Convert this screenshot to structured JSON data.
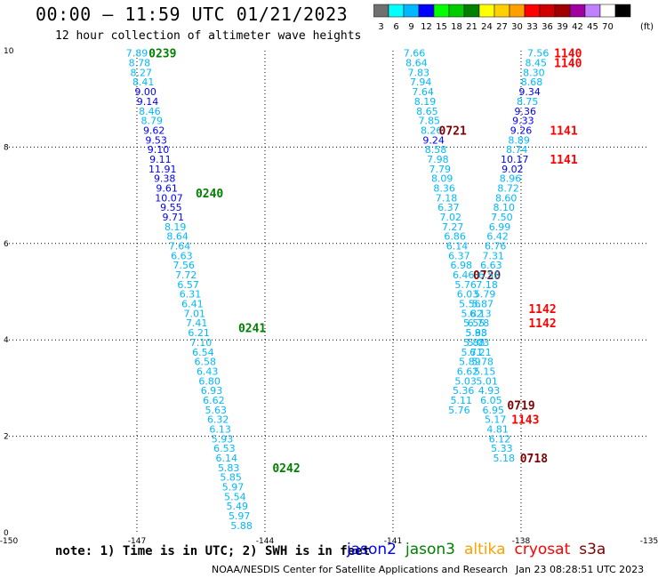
{
  "header": {
    "title": "00:00 – 11:59 UTC 01/21/2023",
    "subtitle": "12 hour collection of altimeter wave heights"
  },
  "legend": {
    "unit": "(ft)",
    "items": [
      {
        "label": "3",
        "color": "#707070"
      },
      {
        "label": "6",
        "color": "#00ffff"
      },
      {
        "label": "9",
        "color": "#00b8ff"
      },
      {
        "label": "12",
        "color": "#0000ff"
      },
      {
        "label": "15",
        "color": "#00ff00"
      },
      {
        "label": "18",
        "color": "#00cc00"
      },
      {
        "label": "21",
        "color": "#008000"
      },
      {
        "label": "24",
        "color": "#ffff00"
      },
      {
        "label": "27",
        "color": "#ffd000"
      },
      {
        "label": "30",
        "color": "#ffa000"
      },
      {
        "label": "33",
        "color": "#ff0000"
      },
      {
        "label": "36",
        "color": "#d00000"
      },
      {
        "label": "39",
        "color": "#a00000"
      },
      {
        "label": "42",
        "color": "#a000a0"
      },
      {
        "label": "45",
        "color": "#c080ff"
      },
      {
        "label": "70",
        "color": "#ffffff"
      },
      {
        "label": "",
        "color": "#000000"
      }
    ]
  },
  "footer": {
    "note": "note: 1) Time is in UTC; 2) SWH is in feet",
    "credit": "NOAA/NESDIS Center for Satellite Applications and Research",
    "generated": "Jan 23 08:28:51 UTC 2023",
    "missions": [
      {
        "name": "jason2",
        "color": "#0000ff"
      },
      {
        "name": "jason3",
        "color": "#008000"
      },
      {
        "name": "altika",
        "color": "#ffa000"
      },
      {
        "name": "cryosat",
        "color": "#ff0000"
      },
      {
        "name": "s3a",
        "color": "#800000"
      }
    ]
  },
  "chart_data": {
    "type": "scatter",
    "xlim": [
      -150,
      -135
    ],
    "ylim": [
      0,
      10
    ],
    "xticks": [
      -150,
      -147,
      -144,
      -141,
      -138,
      -135
    ],
    "yticks": [
      0,
      2,
      4,
      6,
      8,
      10
    ],
    "grid": true,
    "tracks": [
      {
        "mission": "jason3",
        "points": [
          [
            -147.0,
            9.95,
            "7.89"
          ],
          [
            -146.94,
            9.75,
            "8.78"
          ],
          [
            -146.9,
            9.55,
            "8.27"
          ],
          [
            -146.85,
            9.35,
            "8.41"
          ],
          [
            -146.8,
            9.15,
            "9.00"
          ],
          [
            -146.75,
            8.95,
            "9.14"
          ],
          [
            -146.7,
            8.75,
            "8.46"
          ],
          [
            -146.65,
            8.55,
            "8.79"
          ],
          [
            -146.6,
            8.35,
            "9.62"
          ],
          [
            -146.55,
            8.15,
            "9.53"
          ],
          [
            -146.5,
            7.95,
            "9.10"
          ],
          [
            -146.45,
            7.75,
            "9.11"
          ],
          [
            -146.4,
            7.55,
            "11.91"
          ],
          [
            -146.35,
            7.35,
            "9.38"
          ],
          [
            -146.3,
            7.15,
            "9.61"
          ],
          [
            -146.25,
            6.95,
            "10.07"
          ],
          [
            -146.2,
            6.75,
            "9.55"
          ],
          [
            -146.15,
            6.55,
            "9.71"
          ],
          [
            -146.1,
            6.35,
            "8.19"
          ],
          [
            -146.05,
            6.15,
            "8.64"
          ],
          [
            -146.0,
            5.95,
            "7.64"
          ],
          [
            -145.95,
            5.75,
            "6.63"
          ],
          [
            -145.9,
            5.55,
            "7.56"
          ],
          [
            -145.85,
            5.35,
            "7.72"
          ],
          [
            -145.8,
            5.15,
            "6.57"
          ],
          [
            -145.75,
            4.95,
            "6.31"
          ],
          [
            -145.7,
            4.75,
            "6.41"
          ],
          [
            -145.65,
            4.55,
            "7.01"
          ],
          [
            -145.6,
            4.35,
            "7.41"
          ],
          [
            -145.55,
            4.15,
            "6.21"
          ],
          [
            -145.5,
            3.95,
            "7.10"
          ],
          [
            -145.45,
            3.75,
            "6.54"
          ],
          [
            -145.4,
            3.55,
            "6.58"
          ],
          [
            -145.35,
            3.35,
            "6.43"
          ],
          [
            -145.3,
            3.15,
            "6.80"
          ],
          [
            -145.25,
            2.95,
            "6.93"
          ],
          [
            -145.2,
            2.75,
            "6.62"
          ],
          [
            -145.15,
            2.55,
            "5.63"
          ],
          [
            -145.1,
            2.35,
            "6.32"
          ],
          [
            -145.05,
            2.15,
            "6.13"
          ],
          [
            -145.0,
            1.95,
            "5.93"
          ],
          [
            -144.95,
            1.75,
            "6.53"
          ],
          [
            -144.9,
            1.55,
            "6.14"
          ],
          [
            -144.85,
            1.35,
            "5.83"
          ],
          [
            -144.8,
            1.15,
            "5.85"
          ],
          [
            -144.75,
            0.95,
            "5.97"
          ],
          [
            -144.7,
            0.75,
            "5.54"
          ],
          [
            -144.65,
            0.55,
            "5.49"
          ],
          [
            -144.6,
            0.35,
            "5.97"
          ],
          [
            -144.55,
            0.15,
            "5.88"
          ]
        ],
        "times": [
          {
            "x": -146.4,
            "y": 9.95,
            "label": "0239"
          },
          {
            "x": -145.3,
            "y": 7.05,
            "label": "0240"
          },
          {
            "x": -144.3,
            "y": 4.25,
            "label": "0241"
          },
          {
            "x": -143.5,
            "y": 1.35,
            "label": "0242"
          }
        ]
      },
      {
        "mission": "s3a",
        "points": [
          [
            -140.5,
            9.95,
            "7.66"
          ],
          [
            -140.45,
            9.75,
            "8.64"
          ],
          [
            -140.4,
            9.55,
            "7.83"
          ],
          [
            -140.35,
            9.35,
            "7.94"
          ],
          [
            -140.3,
            9.15,
            "7.64"
          ],
          [
            -140.25,
            8.95,
            "8.19"
          ],
          [
            -140.2,
            8.75,
            "8.65"
          ],
          [
            -140.15,
            8.55,
            "7.85"
          ],
          [
            -140.1,
            8.35,
            "8.26"
          ],
          [
            -140.05,
            8.15,
            "9.24"
          ],
          [
            -140.0,
            7.95,
            "8.58"
          ],
          [
            -139.95,
            7.75,
            "7.98"
          ],
          [
            -139.9,
            7.55,
            "7.79"
          ],
          [
            -139.85,
            7.35,
            "8.09"
          ],
          [
            -139.8,
            7.15,
            "8.36"
          ],
          [
            -139.75,
            6.95,
            "7.18"
          ],
          [
            -139.7,
            6.75,
            "6.37"
          ],
          [
            -139.65,
            6.55,
            "7.02"
          ],
          [
            -139.6,
            6.35,
            "7.27"
          ],
          [
            -139.55,
            6.15,
            "6.86"
          ],
          [
            -139.5,
            5.95,
            "6.14"
          ],
          [
            -139.45,
            5.75,
            "6.37"
          ],
          [
            -139.4,
            5.55,
            "6.98"
          ],
          [
            -139.35,
            5.35,
            "6.46"
          ],
          [
            -139.3,
            5.15,
            "5.76"
          ],
          [
            -139.25,
            4.95,
            "6.03"
          ],
          [
            -139.2,
            4.75,
            "5.56"
          ],
          [
            -139.15,
            4.55,
            "5.82"
          ],
          [
            -139.1,
            4.35,
            "5.55"
          ],
          [
            -139.05,
            4.15,
            "5.93"
          ],
          [
            -139.0,
            3.95,
            "5.03"
          ],
          [
            -138.95,
            3.75,
            "6.21"
          ],
          [
            -138.9,
            3.55,
            "5.78"
          ],
          [
            -138.85,
            3.35,
            "5.15"
          ],
          [
            -138.8,
            3.15,
            "5.01"
          ],
          [
            -138.75,
            2.95,
            "4.93"
          ],
          [
            -138.7,
            2.75,
            "6.05"
          ],
          [
            -138.65,
            2.55,
            "6.95"
          ],
          [
            -138.6,
            2.35,
            "5.17"
          ],
          [
            -138.55,
            2.15,
            "4.81"
          ],
          [
            -138.5,
            1.95,
            "6.12"
          ],
          [
            -138.45,
            1.75,
            "5.33"
          ],
          [
            -138.4,
            1.55,
            "5.18"
          ]
        ],
        "times": [
          {
            "x": -139.6,
            "y": 8.35,
            "label": "0721"
          },
          {
            "x": -138.8,
            "y": 5.35,
            "label": "0720"
          },
          {
            "x": -138.0,
            "y": 2.65,
            "label": "0719"
          },
          {
            "x": -137.7,
            "y": 1.55,
            "label": "0718"
          }
        ]
      },
      {
        "mission": "cryosat",
        "points": [
          [
            -137.6,
            9.95,
            "7.56"
          ],
          [
            -137.65,
            9.75,
            "8.45"
          ],
          [
            -137.7,
            9.55,
            "8.30"
          ],
          [
            -137.75,
            9.35,
            "8.68"
          ],
          [
            -137.8,
            9.15,
            "9.34"
          ],
          [
            -137.85,
            8.95,
            "8.75"
          ],
          [
            -137.9,
            8.75,
            "9.36"
          ],
          [
            -137.95,
            8.55,
            "9.33"
          ],
          [
            -138.0,
            8.35,
            "9.26"
          ],
          [
            -138.05,
            8.15,
            "8.89"
          ],
          [
            -138.1,
            7.95,
            "8.74"
          ],
          [
            -138.15,
            7.75,
            "10.17"
          ],
          [
            -138.2,
            7.55,
            "9.02"
          ],
          [
            -138.25,
            7.35,
            "8.96"
          ],
          [
            -138.3,
            7.15,
            "8.72"
          ],
          [
            -138.35,
            6.95,
            "8.60"
          ],
          [
            -138.4,
            6.75,
            "8.10"
          ],
          [
            -138.45,
            6.55,
            "7.50"
          ],
          [
            -138.5,
            6.35,
            "6.99"
          ],
          [
            -138.55,
            6.15,
            "6.42"
          ],
          [
            -138.6,
            5.95,
            "6.76"
          ],
          [
            -138.65,
            5.75,
            "7.31"
          ],
          [
            -138.7,
            5.55,
            "6.63"
          ],
          [
            -138.75,
            5.35,
            "6.58"
          ],
          [
            -138.8,
            5.15,
            "7.18"
          ],
          [
            -138.85,
            4.95,
            "5.79"
          ],
          [
            -138.9,
            4.75,
            "5.87"
          ],
          [
            -138.95,
            4.55,
            "6.13"
          ],
          [
            -139.0,
            4.35,
            "6.78"
          ],
          [
            -139.05,
            4.15,
            "5.88"
          ],
          [
            -139.1,
            3.95,
            "5.88"
          ],
          [
            -139.15,
            3.75,
            "5.71"
          ],
          [
            -139.2,
            3.55,
            "5.89"
          ],
          [
            -139.25,
            3.35,
            "6.62"
          ],
          [
            -139.3,
            3.15,
            "5.03"
          ],
          [
            -139.35,
            2.95,
            "5.36"
          ],
          [
            -139.4,
            2.75,
            "5.11"
          ],
          [
            -139.45,
            2.55,
            "5.76"
          ]
        ],
        "times": [
          {
            "x": -136.9,
            "y": 9.95,
            "label": "1140"
          },
          {
            "x": -136.9,
            "y": 9.75,
            "label": "1140"
          },
          {
            "x": -137.0,
            "y": 8.35,
            "label": "1141"
          },
          {
            "x": -137.0,
            "y": 7.75,
            "label": "1141"
          },
          {
            "x": -137.5,
            "y": 4.65,
            "label": "1142"
          },
          {
            "x": -137.5,
            "y": 4.35,
            "label": "1142"
          },
          {
            "x": -137.9,
            "y": 2.35,
            "label": "1143"
          }
        ]
      }
    ]
  }
}
